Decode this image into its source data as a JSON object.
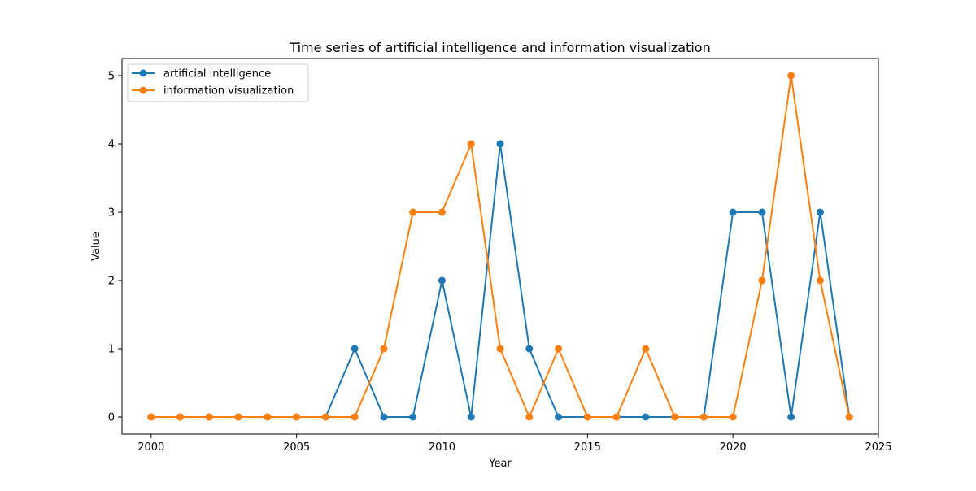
{
  "chart_data": {
    "type": "line",
    "title": "Time series of artificial intelligence and information visualization",
    "xlabel": "Year",
    "ylabel": "Value",
    "x": [
      2000,
      2001,
      2002,
      2003,
      2004,
      2005,
      2006,
      2007,
      2008,
      2009,
      2010,
      2011,
      2012,
      2013,
      2014,
      2015,
      2016,
      2017,
      2018,
      2019,
      2020,
      2021,
      2022,
      2023,
      2024
    ],
    "xlim": [
      1999,
      2025
    ],
    "ylim": [
      -0.25,
      5.25
    ],
    "xticks": [
      2000,
      2005,
      2010,
      2015,
      2020,
      2025
    ],
    "yticks": [
      0,
      1,
      2,
      3,
      4,
      5
    ],
    "grid": false,
    "legend_position": "top-left",
    "series": [
      {
        "name": "artificial intelligence",
        "color": "#1f77b4",
        "marker": "circle",
        "values": [
          0,
          0,
          0,
          0,
          0,
          0,
          0,
          1,
          0,
          0,
          2,
          0,
          4,
          1,
          0,
          0,
          0,
          0,
          0,
          0,
          3,
          3,
          0,
          3,
          0
        ]
      },
      {
        "name": "information visualization",
        "color": "#ff7f0e",
        "marker": "circle",
        "values": [
          0,
          0,
          0,
          0,
          0,
          0,
          0,
          0,
          1,
          3,
          3,
          4,
          1,
          0,
          1,
          0,
          0,
          1,
          0,
          0,
          0,
          2,
          5,
          2,
          0
        ]
      }
    ]
  }
}
